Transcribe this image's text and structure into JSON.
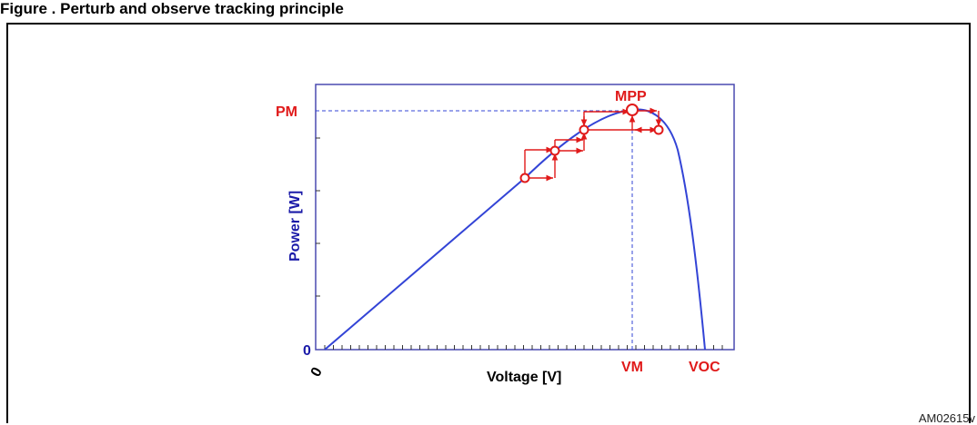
{
  "caption": "Figure . Perturb and observe tracking principle",
  "figure_ref": "AM02615v",
  "diagram": {
    "y_axis_label": "Power [W]",
    "x_axis_label": "Voltage [V]",
    "y_origin_label": "0",
    "x_origin_label": "0",
    "pm_label": "PM",
    "mpp_label": "MPP",
    "vm_label": "VM",
    "voc_label": "VOC",
    "colors": {
      "curve": "#3344d6",
      "annotation": "#e01a1a",
      "axis_text": "#1a1aa8",
      "frame": "#4a4ab0"
    }
  }
}
